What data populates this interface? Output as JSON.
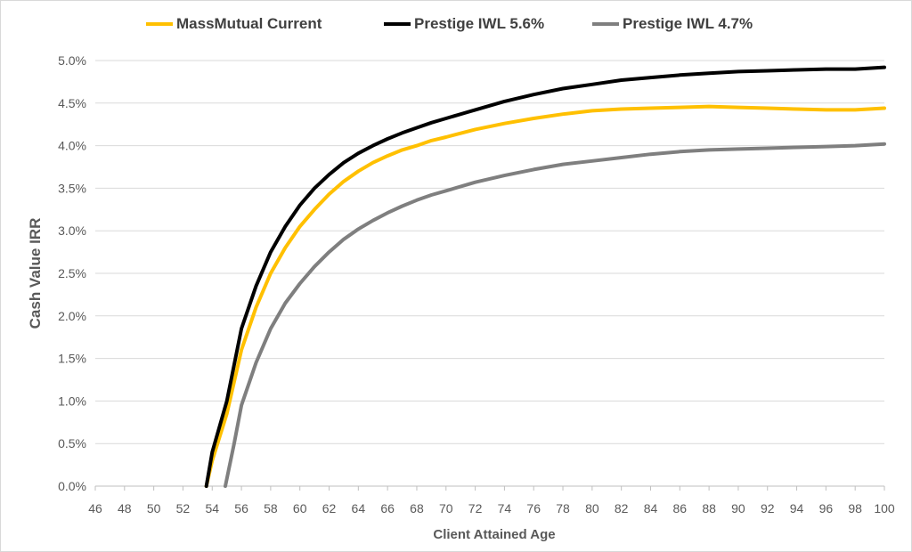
{
  "chart_data": {
    "type": "line",
    "title": "",
    "xlabel": "Client Attained Age",
    "ylabel": "Cash Value IRR",
    "xlim": [
      46,
      100
    ],
    "ylim": [
      0,
      5.0
    ],
    "x_ticks": [
      "46",
      "48",
      "50",
      "52",
      "54",
      "56",
      "58",
      "60",
      "62",
      "64",
      "66",
      "68",
      "70",
      "72",
      "74",
      "76",
      "78",
      "80",
      "82",
      "84",
      "86",
      "88",
      "90",
      "92",
      "94",
      "96",
      "98",
      "100"
    ],
    "y_ticks": [
      "0.0%",
      "0.5%",
      "1.0%",
      "1.5%",
      "2.0%",
      "2.5%",
      "3.0%",
      "3.5%",
      "4.0%",
      "4.5%",
      "5.0%"
    ],
    "grid": "horizontal",
    "legend_position": "top",
    "series": [
      {
        "name": "MassMutual Current",
        "color": "#ffc000",
        "x": [
          53.6,
          54,
          55,
          56,
          57,
          58,
          59,
          60,
          61,
          62,
          63,
          64,
          65,
          66,
          67,
          68,
          69,
          70,
          72,
          74,
          76,
          78,
          80,
          82,
          84,
          86,
          88,
          90,
          92,
          94,
          96,
          98,
          100
        ],
        "values": [
          0,
          0.3,
          0.85,
          1.6,
          2.1,
          2.5,
          2.8,
          3.05,
          3.25,
          3.43,
          3.58,
          3.7,
          3.8,
          3.88,
          3.95,
          4.0,
          4.06,
          4.1,
          4.19,
          4.26,
          4.32,
          4.37,
          4.41,
          4.43,
          4.44,
          4.45,
          4.46,
          4.45,
          4.44,
          4.43,
          4.42,
          4.42,
          4.44
        ]
      },
      {
        "name": "Prestige IWL 5.6%",
        "color": "#000000",
        "x": [
          53.6,
          54,
          55,
          56,
          57,
          58,
          59,
          60,
          61,
          62,
          63,
          64,
          65,
          66,
          67,
          68,
          69,
          70,
          72,
          74,
          76,
          78,
          80,
          82,
          84,
          86,
          88,
          90,
          92,
          94,
          96,
          98,
          100
        ],
        "values": [
          0,
          0.4,
          1.0,
          1.85,
          2.35,
          2.75,
          3.05,
          3.3,
          3.5,
          3.66,
          3.8,
          3.91,
          4.0,
          4.08,
          4.15,
          4.21,
          4.27,
          4.32,
          4.42,
          4.52,
          4.6,
          4.67,
          4.72,
          4.77,
          4.8,
          4.83,
          4.85,
          4.87,
          4.88,
          4.89,
          4.9,
          4.9,
          4.92
        ]
      },
      {
        "name": "Prestige IWL 4.7%",
        "color": "#7f7f7f",
        "x": [
          54.9,
          55.5,
          56,
          57,
          58,
          59,
          60,
          61,
          62,
          63,
          64,
          65,
          66,
          67,
          68,
          69,
          70,
          72,
          74,
          76,
          78,
          80,
          82,
          84,
          86,
          88,
          90,
          92,
          94,
          96,
          98,
          100
        ],
        "values": [
          0,
          0.5,
          0.95,
          1.45,
          1.85,
          2.15,
          2.38,
          2.58,
          2.75,
          2.9,
          3.02,
          3.12,
          3.21,
          3.29,
          3.36,
          3.42,
          3.47,
          3.57,
          3.65,
          3.72,
          3.78,
          3.82,
          3.86,
          3.9,
          3.93,
          3.95,
          3.96,
          3.97,
          3.98,
          3.99,
          4.0,
          4.02
        ]
      }
    ]
  }
}
